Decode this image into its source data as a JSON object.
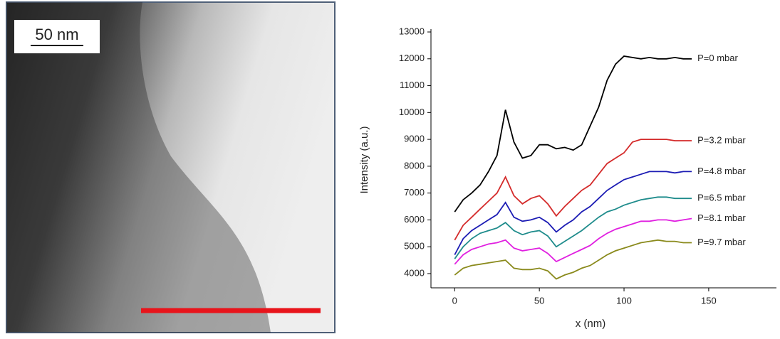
{
  "image": {
    "scale_label": "50 nm"
  },
  "chart_data": {
    "type": "line",
    "xlabel": "x (nm)",
    "ylabel": "Intensity (a.u.)",
    "x": [
      0,
      5,
      10,
      15,
      20,
      25,
      30,
      35,
      40,
      45,
      50,
      55,
      60,
      65,
      70,
      75,
      80,
      85,
      90,
      95,
      100,
      105,
      110,
      115,
      120,
      125,
      130,
      135,
      140
    ],
    "xlim": [
      -14,
      190
    ],
    "xticks": [
      0,
      50,
      100,
      150
    ],
    "ylim": [
      3470,
      13000
    ],
    "yticks": [
      4000,
      5000,
      6000,
      7000,
      8000,
      9000,
      10000,
      11000,
      12000,
      13000
    ],
    "series": [
      {
        "name": "P=0 mbar",
        "color": "#000000",
        "values": [
          6300,
          6750,
          7000,
          7300,
          7800,
          8400,
          10100,
          8900,
          8300,
          8400,
          8800,
          8800,
          8650,
          8700,
          8600,
          8800,
          9500,
          10200,
          11200,
          11800,
          12100,
          12050,
          12000,
          12050,
          12000,
          12000,
          12050,
          12000,
          12000
        ]
      },
      {
        "name": "P=3.2 mbar",
        "color": "#d42a2a",
        "values": [
          5250,
          5800,
          6100,
          6400,
          6700,
          7000,
          7600,
          6900,
          6600,
          6800,
          6900,
          6600,
          6150,
          6500,
          6800,
          7100,
          7300,
          7700,
          8100,
          8300,
          8500,
          8900,
          9000,
          9000,
          9000,
          9000,
          8950,
          8950,
          8950
        ]
      },
      {
        "name": "P=4.8 mbar",
        "color": "#1c1cb4",
        "values": [
          4700,
          5300,
          5600,
          5800,
          6000,
          6200,
          6650,
          6100,
          5950,
          6000,
          6100,
          5900,
          5550,
          5800,
          6000,
          6300,
          6500,
          6800,
          7100,
          7300,
          7500,
          7600,
          7700,
          7800,
          7800,
          7800,
          7750,
          7800,
          7800
        ]
      },
      {
        "name": "P=6.5 mbar",
        "color": "#1f8c8c",
        "values": [
          4550,
          5000,
          5300,
          5500,
          5600,
          5700,
          5900,
          5600,
          5450,
          5550,
          5600,
          5400,
          5000,
          5200,
          5400,
          5600,
          5850,
          6100,
          6300,
          6400,
          6550,
          6650,
          6750,
          6800,
          6850,
          6850,
          6800,
          6800,
          6800
        ]
      },
      {
        "name": "P=8.1 mbar",
        "color": "#e020e0",
        "values": [
          4350,
          4700,
          4900,
          5000,
          5100,
          5150,
          5250,
          4950,
          4850,
          4900,
          4950,
          4750,
          4450,
          4600,
          4750,
          4900,
          5050,
          5300,
          5500,
          5650,
          5750,
          5850,
          5950,
          5950,
          6000,
          6000,
          5950,
          6000,
          6050
        ]
      },
      {
        "name": "P=9.7 mbar",
        "color": "#8a8a1c",
        "values": [
          3950,
          4200,
          4300,
          4350,
          4400,
          4450,
          4500,
          4200,
          4150,
          4150,
          4200,
          4100,
          3800,
          3950,
          4050,
          4200,
          4300,
          4500,
          4700,
          4850,
          4950,
          5050,
          5150,
          5200,
          5250,
          5200,
          5200,
          5150,
          5150
        ]
      }
    ]
  }
}
